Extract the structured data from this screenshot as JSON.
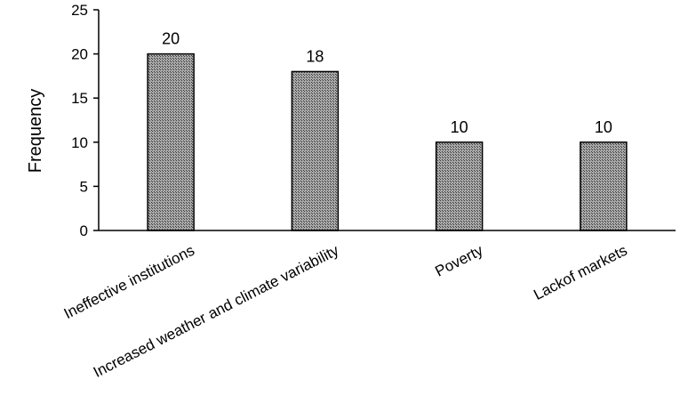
{
  "chart_data": {
    "type": "bar",
    "categories": [
      "Ineffective institutions",
      "Increased weather and climate variability",
      "Poverty",
      "Lackof markets"
    ],
    "values": [
      20,
      18,
      10,
      10
    ],
    "data_labels": [
      "20",
      "18",
      "10",
      "10"
    ],
    "title": "",
    "xlabel": "",
    "ylabel": "Frequency",
    "ylim": [
      0,
      25
    ],
    "yticks": [
      0,
      5,
      10,
      15,
      20,
      25
    ],
    "grid": false,
    "legend": "none",
    "bar_fill": "#8c8c8c",
    "bar_pattern": "crosshatch",
    "bar_stroke": "#000000"
  }
}
